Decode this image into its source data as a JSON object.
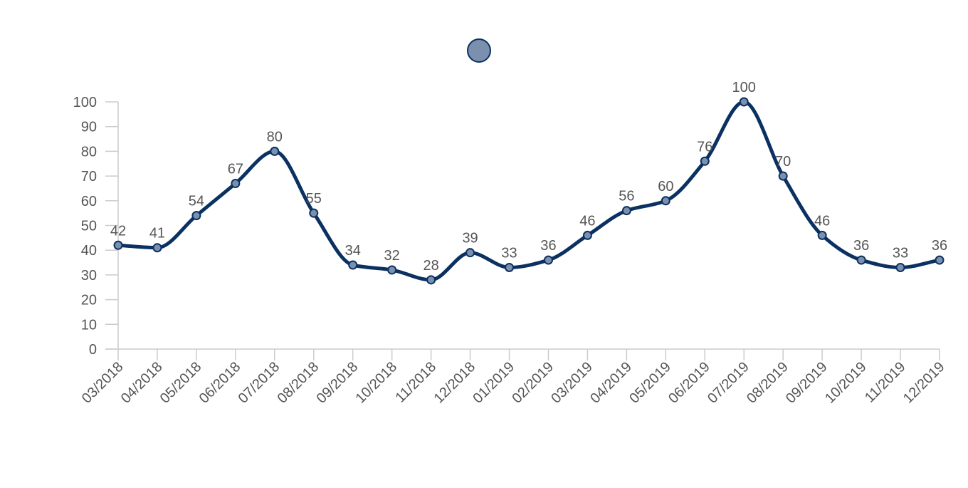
{
  "chart_data": {
    "type": "line",
    "title": "",
    "xlabel": "",
    "ylabel": "",
    "ylim": [
      0,
      100
    ],
    "yticks": [
      0,
      10,
      20,
      30,
      40,
      50,
      60,
      70,
      80,
      90,
      100
    ],
    "grid": false,
    "legend_position": "top",
    "smooth": true,
    "categories": [
      "03/2018",
      "04/2018",
      "05/2018",
      "06/2018",
      "07/2018",
      "08/2018",
      "09/2018",
      "10/2018",
      "11/2018",
      "12/2018",
      "01/2019",
      "02/2019",
      "03/2019",
      "04/2019",
      "05/2019",
      "06/2019",
      "07/2019",
      "08/2019",
      "09/2019",
      "10/2019",
      "11/2019",
      "12/2019"
    ],
    "series": [
      {
        "color": "#0a3161",
        "marker_fill": "#7b8fae",
        "values": [
          42,
          41,
          54,
          67,
          80,
          55,
          34,
          32,
          28,
          39,
          33,
          36,
          46,
          56,
          60,
          76,
          100,
          70,
          46,
          36,
          33,
          36
        ]
      }
    ]
  }
}
